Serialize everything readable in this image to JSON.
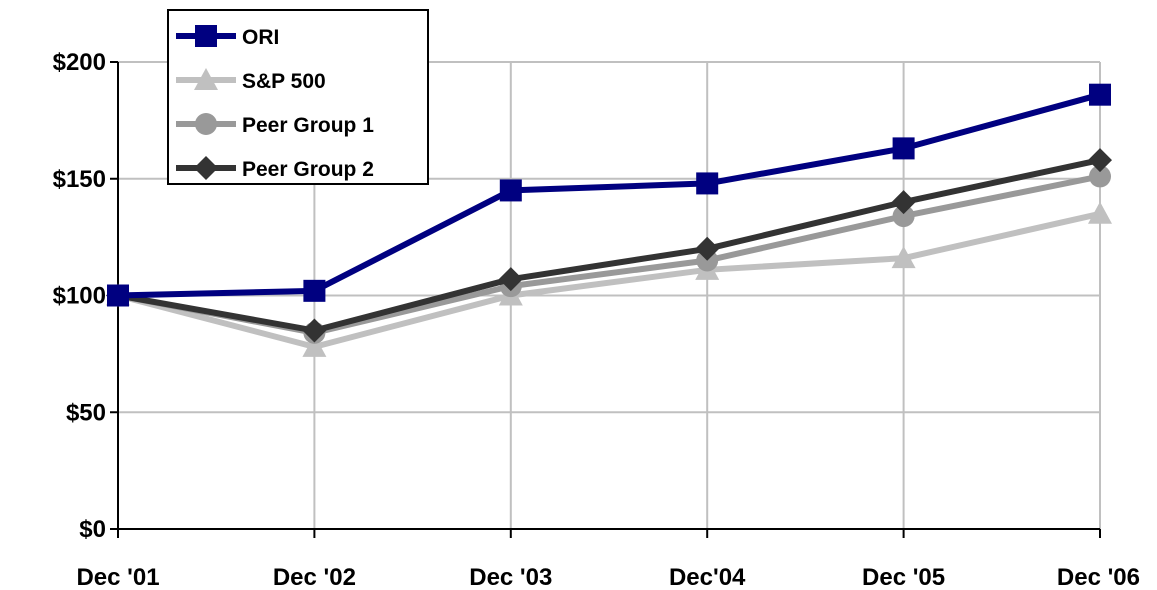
{
  "chart_data": {
    "type": "line",
    "title": "",
    "xlabel": "",
    "ylabel": "",
    "categories": [
      "Dec '01",
      "Dec '02",
      "Dec '03",
      "Dec'04",
      "Dec '05",
      "Dec '06"
    ],
    "ylim": [
      0,
      200
    ],
    "yticks": [
      0,
      50,
      100,
      150,
      200
    ],
    "ytick_labels": [
      "$0",
      "$50",
      "$100",
      "$150",
      "$200"
    ],
    "grid": true,
    "legend_position": "top-left",
    "series": [
      {
        "name": "ORI",
        "color": "#000080",
        "marker": "square",
        "values": [
          100,
          102,
          145,
          148,
          163,
          186
        ]
      },
      {
        "name": "S&P 500",
        "color": "#C0C0C0",
        "marker": "triangle",
        "values": [
          100,
          78,
          100,
          111,
          116,
          135
        ]
      },
      {
        "name": "Peer Group 1",
        "color": "#999999",
        "marker": "circle",
        "values": [
          100,
          84,
          104,
          115,
          134,
          151
        ]
      },
      {
        "name": "Peer Group 2",
        "color": "#333333",
        "marker": "diamond",
        "values": [
          100,
          85,
          107,
          120,
          140,
          158
        ]
      }
    ]
  }
}
